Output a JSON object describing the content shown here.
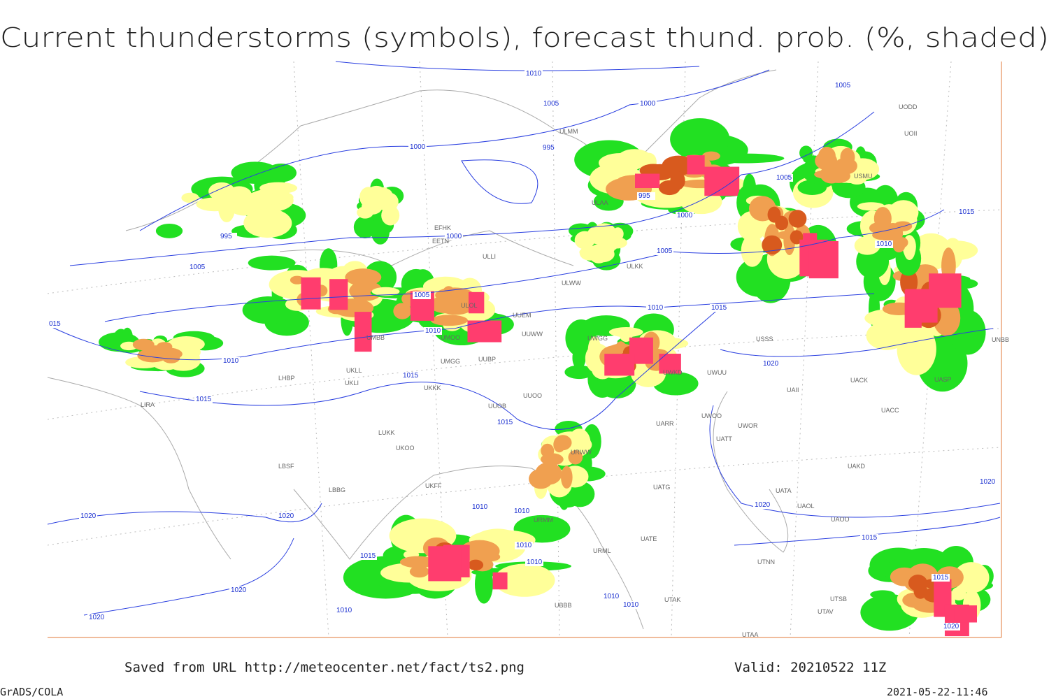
{
  "header": {
    "title": "Current thunderstorms (symbols), forecast thund. prob. (%, shaded)"
  },
  "footer": {
    "source": "Saved from URL http://meteocenter.net/fact/ts2.png",
    "valid": "Valid: 20210522 11Z",
    "software": "GrADS/COLA",
    "timestamp": "2021-05-22-11:46"
  },
  "map": {
    "isobar_labels": [
      "1010",
      "1005",
      "1000",
      "1005",
      "995",
      "1000",
      "995",
      "1000",
      "1005",
      "1005",
      "1010",
      "1015",
      "995",
      "1000",
      "1005",
      "1005",
      "1010",
      "1015",
      "1010",
      "015",
      "1010",
      "1015",
      "1015",
      "1015",
      "1020",
      "1020",
      "1020",
      "1020",
      "1020",
      "1020",
      "1020",
      "1010",
      "1010",
      "1010",
      "1010",
      "1015",
      "1010",
      "1010",
      "1010",
      "1015",
      "1015",
      "1020"
    ],
    "stations": [
      "ULAA",
      "ULKK",
      "ULWW",
      "UUEM",
      "UUWW",
      "UWGG",
      "ULOL",
      "UUBP",
      "UKKK",
      "UUOO",
      "UUOB",
      "LUKK",
      "UKOO",
      "LBSF",
      "LBBG",
      "LIRA",
      "UKFF",
      "URWW",
      "UATG",
      "UATT",
      "UARR",
      "UWOO",
      "UWOR",
      "UAKD",
      "UATA",
      "UAOL",
      "UAOO",
      "UTNN",
      "UAII",
      "UACK",
      "UACC",
      "UASP",
      "UNBB",
      "USMU",
      "UOII",
      "UODD",
      "ULLI",
      "EETN",
      "EFHK",
      "ULMM",
      "USSS",
      "UWUU",
      "UWKD",
      "UTAK",
      "UTAV",
      "UTSB",
      "UTAA",
      "UBBB",
      "URML",
      "UATE",
      "URMM",
      "UMBB",
      "UMOO",
      "UMGG",
      "UKLL",
      "UKLI",
      "LHBP"
    ]
  }
}
